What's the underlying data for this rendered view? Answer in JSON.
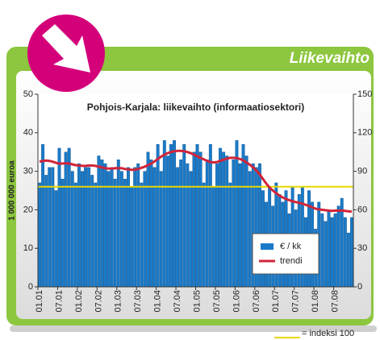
{
  "header": {
    "title": "Liikevaihto"
  },
  "chart_data": {
    "type": "bar",
    "title": "Pohjois-Karjala: liikevaihto (informaatiosektori)",
    "y_label": "1 000 000 euroa",
    "categories": [
      "01.01",
      null,
      null,
      null,
      null,
      null,
      "07.01",
      null,
      null,
      null,
      null,
      null,
      "01.02",
      null,
      null,
      null,
      null,
      null,
      "07.02",
      null,
      null,
      null,
      null,
      null,
      "01.03",
      null,
      null,
      null,
      null,
      null,
      "07.03",
      null,
      null,
      null,
      null,
      null,
      "01.04",
      null,
      null,
      null,
      null,
      null,
      "07.04",
      null,
      null,
      null,
      null,
      null,
      "01.05",
      null,
      null,
      null,
      null,
      null,
      "07.05",
      null,
      null,
      null,
      null,
      null,
      "01.06",
      null,
      null,
      null,
      null,
      null,
      "07.06",
      null,
      null,
      null,
      null,
      null,
      "01.07",
      null,
      null,
      null,
      null,
      null,
      "07.07",
      null,
      null,
      null,
      null,
      null,
      "01.08",
      null,
      null,
      null,
      null,
      null,
      "07.08",
      null,
      null,
      null,
      null,
      null
    ],
    "series": [
      {
        "name": "€ / kk",
        "color": "#1a7ac9",
        "type": "bar",
        "values": [
          27,
          37,
          29,
          31,
          31,
          25,
          36,
          28,
          35,
          36,
          30,
          27,
          32,
          30,
          31,
          31,
          29,
          27,
          34,
          33,
          32,
          30,
          31,
          28,
          33,
          30,
          28,
          31,
          26,
          31,
          32,
          27,
          30,
          35,
          33,
          31,
          37,
          30,
          38,
          34,
          37,
          38,
          31,
          33,
          37,
          32,
          30,
          35,
          37,
          35,
          27,
          33,
          37,
          26,
          32,
          36,
          35,
          34,
          27,
          33,
          38,
          32,
          37,
          34,
          30,
          32,
          31,
          32,
          25,
          22,
          26,
          21,
          27,
          24,
          22,
          25,
          19,
          26,
          20,
          24,
          26,
          18,
          25,
          22,
          15,
          22,
          19,
          17,
          20,
          18,
          19,
          21,
          23,
          18,
          14,
          18
        ]
      },
      {
        "name": "trendi",
        "color": "#d0243a",
        "type": "line",
        "values": [
          32.5,
          32.7,
          32.8,
          32.7,
          32.5,
          32.2,
          32.0,
          32.0,
          32.1,
          32.0,
          31.8,
          31.6,
          31.5,
          31.4,
          31.4,
          31.5,
          31.5,
          31.4,
          31.2,
          31.0,
          30.8,
          30.7,
          30.7,
          30.8,
          30.8,
          30.8,
          30.6,
          30.5,
          30.4,
          30.4,
          30.6,
          30.9,
          31.2,
          31.6,
          32.0,
          32.6,
          33.2,
          33.8,
          34.3,
          34.7,
          35.0,
          35.2,
          35.3,
          35.3,
          35.2,
          35.0,
          34.7,
          34.3,
          33.9,
          33.5,
          33.1,
          32.7,
          32.4,
          32.3,
          32.4,
          32.7,
          33.0,
          33.3,
          33.5,
          33.5,
          33.4,
          33.2,
          32.8,
          32.3,
          31.7,
          31.0,
          30.2,
          29.2,
          28.0,
          26.8,
          25.8,
          25.0,
          24.3,
          23.7,
          23.2,
          22.8,
          22.5,
          22.2,
          22.0,
          21.8,
          21.6,
          21.3,
          21.0,
          20.6,
          20.3,
          20.1,
          20.0,
          19.9,
          19.8,
          19.7,
          19.8,
          19.8,
          19.8,
          19.7,
          19.6,
          19.5
        ]
      }
    ],
    "reference_line": {
      "value": 26,
      "label": "= indeksi 100",
      "color": "#e8d800"
    },
    "ylim": [
      0,
      50
    ],
    "yticks": [
      0,
      10,
      20,
      30,
      40,
      50
    ],
    "y2lim": [
      0,
      150
    ],
    "y2ticks": [
      0,
      30,
      60,
      90,
      120,
      150
    ],
    "legend": "lower right"
  }
}
